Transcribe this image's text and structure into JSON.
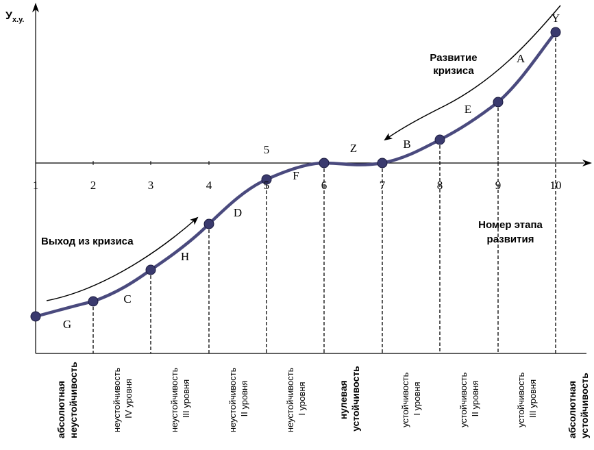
{
  "y_axis_label": {
    "main": "У",
    "sub": "х.у."
  },
  "x_axis_numbers": [
    "1",
    "2",
    "3",
    "4",
    "5",
    "6",
    "7",
    "8",
    "9",
    "10"
  ],
  "upper_five": "5",
  "curve_letters": [
    "G",
    "C",
    "H",
    "D",
    "F",
    "Z",
    "B",
    "E",
    "A",
    "Y"
  ],
  "arrow_labels": {
    "exit": "Выход из кризиса",
    "crisis_line1": "Развитие",
    "crisis_line2": "кризиса"
  },
  "stage_caption": {
    "line1": "Номер этапа",
    "line2": "развития"
  },
  "columns": [
    {
      "line1": "абсолютная",
      "line2": "неустойчивость",
      "bold": true
    },
    {
      "line1": "неустойчивость",
      "line2": "IV уровня",
      "bold": false
    },
    {
      "line1": "неустойчивость",
      "line2": "III уровня",
      "bold": false
    },
    {
      "line1": "неустойчивость",
      "line2": "II уровня",
      "bold": false
    },
    {
      "line1": "неустойчивость",
      "line2": "I уровня",
      "bold": false
    },
    {
      "line1": "нулевая",
      "line2": "устойчивость",
      "bold": true
    },
    {
      "line1": "устойчивость",
      "line2": "I уровня",
      "bold": false
    },
    {
      "line1": "устойчивость",
      "line2": "II уровня",
      "bold": false
    },
    {
      "line1": "устойчивость",
      "line2": "III уровня",
      "bold": false
    },
    {
      "line1": "абсолютная",
      "line2": "устойчивость",
      "bold": true
    }
  ],
  "colors": {
    "curve": "#4a4a7e",
    "dot": "#3a3a6e",
    "ink": "#000000"
  }
}
